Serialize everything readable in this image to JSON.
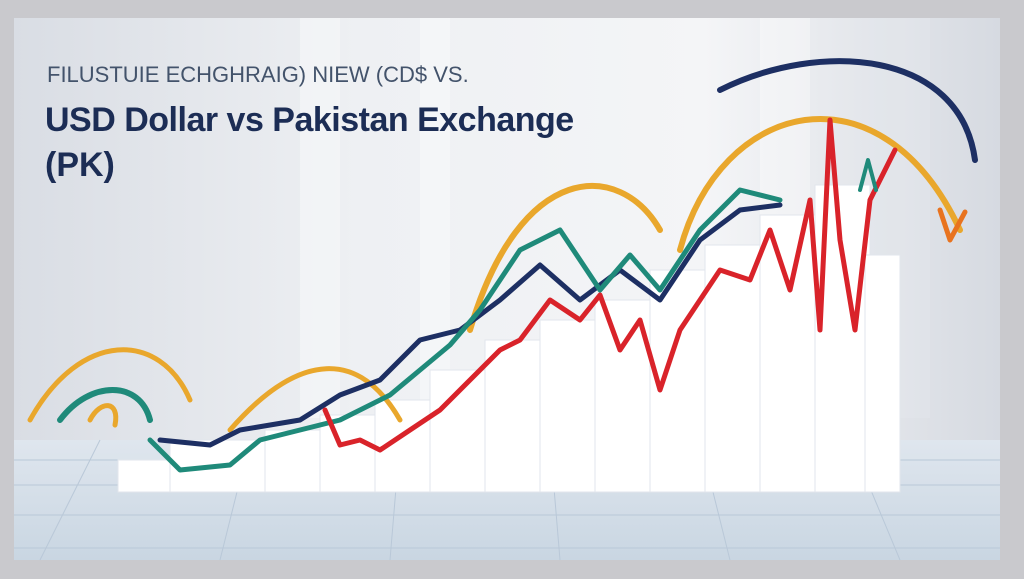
{
  "header": {
    "kicker": "FILUSTUIE ECHGHRAIG) NIEW (CD$ VS.",
    "title_lines": [
      "USD Dollar vs Pakistan Exchange",
      "(PK)"
    ]
  }
}
